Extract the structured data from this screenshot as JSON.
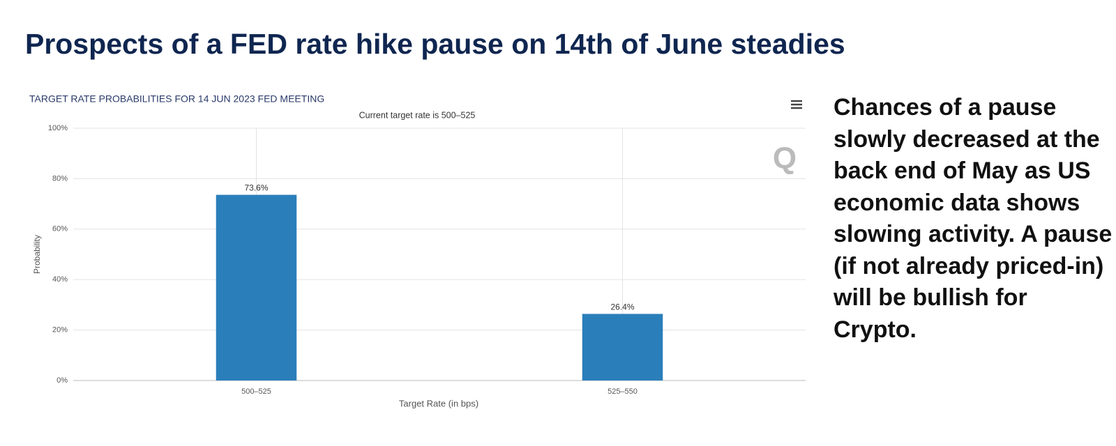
{
  "title": "Prospects of a FED rate hike pause on 14th of June steadies",
  "commentary": "Chances of a pause slowly decreased at the back end of May as US economic data shows slowing activity. A pause (if not already priced-in) will be bullish for Crypto.",
  "chart_data": {
    "type": "bar",
    "title": "TARGET RATE PROBABILITIES FOR 14 JUN 2023 FED MEETING",
    "subtitle": "Current target rate is 500–525",
    "x_label": "Target Rate (in bps)",
    "y_label": "Probability",
    "categories": [
      "500–525",
      "525–550"
    ],
    "values": [
      73.6,
      26.4
    ],
    "value_labels": [
      "73.6%",
      "26.4%"
    ],
    "color": "#2a7fba",
    "ylim": [
      0,
      100
    ],
    "yticks": [
      {
        "value": 0,
        "label": "0%"
      },
      {
        "value": 20,
        "label": "20%"
      },
      {
        "value": 40,
        "label": "40%"
      },
      {
        "value": 60,
        "label": "60%"
      },
      {
        "value": 80,
        "label": "80%"
      },
      {
        "value": 100,
        "label": "100%"
      }
    ],
    "grid": true
  }
}
